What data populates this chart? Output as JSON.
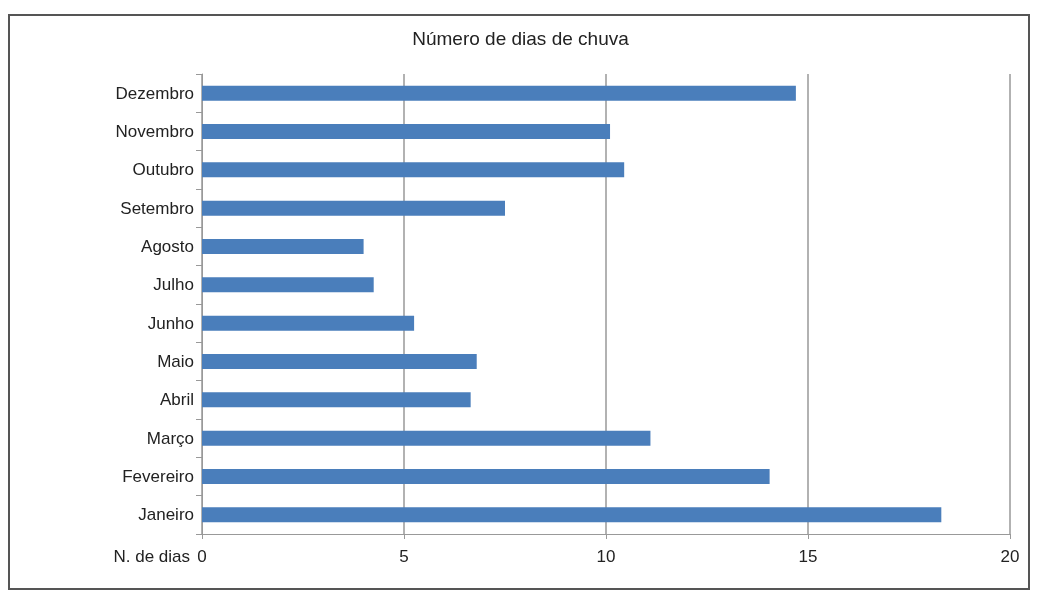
{
  "chart_data": {
    "type": "bar",
    "orientation": "horizontal",
    "title": "Número de dias de chuva",
    "xlabel": "N. de dias",
    "categories": [
      "Dezembro",
      "Novembro",
      "Outubro",
      "Setembro",
      "Agosto",
      "Julho",
      "Junho",
      "Maio",
      "Abril",
      "Março",
      "Fevereiro",
      "Janeiro"
    ],
    "values": [
      14.7,
      10.1,
      10.45,
      7.5,
      4.0,
      4.25,
      5.25,
      6.8,
      6.65,
      11.1,
      14.05,
      18.3
    ],
    "color": "#4a7ebb",
    "xlim": [
      0,
      20
    ],
    "xticks": [
      0,
      5,
      10,
      15,
      20
    ],
    "grid": "x"
  }
}
